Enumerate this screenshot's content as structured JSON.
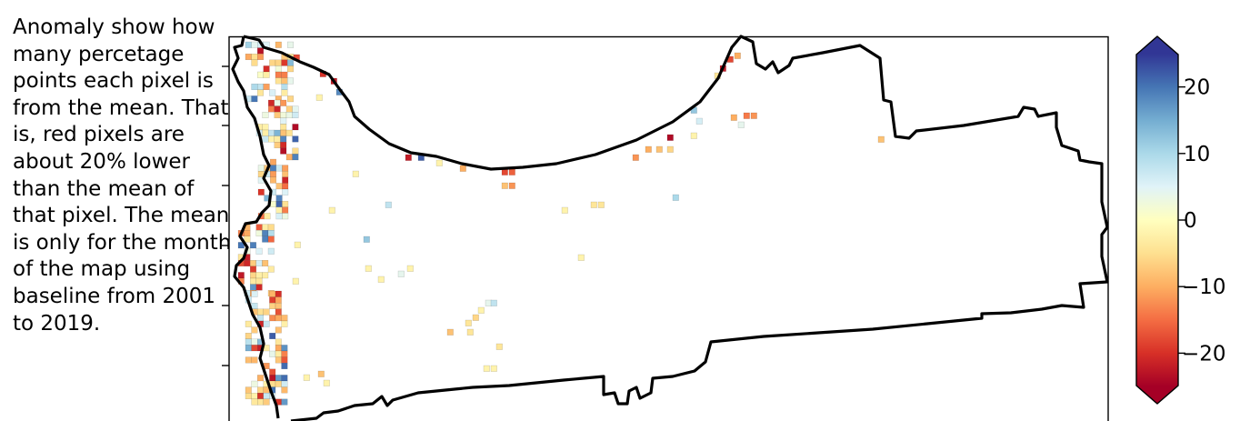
{
  "annotation": "Anomaly show how many percetage points each pixel is from the mean. That is, red pixels are about 20% lower than the mean of that pixel. The mean is only for the month of the map using baseline from 2001 to 2019.",
  "chart_data": {
    "type": "heatmap",
    "title": "",
    "xlabel": "",
    "ylabel": "",
    "colormap": "RdYlBu",
    "colorbar": {
      "range": [
        -25,
        25
      ],
      "extend": "both",
      "ticks": [
        {
          "value": 20,
          "label": "20"
        },
        {
          "value": 10,
          "label": "10"
        },
        {
          "value": 0,
          "label": "0"
        },
        {
          "value": -10,
          "label": "−10"
        },
        {
          "value": -20,
          "label": "−20"
        }
      ],
      "colors": [
        "#a50026",
        "#d73027",
        "#f46d43",
        "#fdae61",
        "#fee090",
        "#ffffbf",
        "#e0f3f8",
        "#abd9e9",
        "#74add1",
        "#4575b4",
        "#313695"
      ]
    },
    "axes": {
      "x_ticks_shown": false,
      "y_tick_marks": 7,
      "grid": false
    },
    "notes_visible": "map of anomaly pixels inside a black region outline; most pixels near the western coast"
  }
}
